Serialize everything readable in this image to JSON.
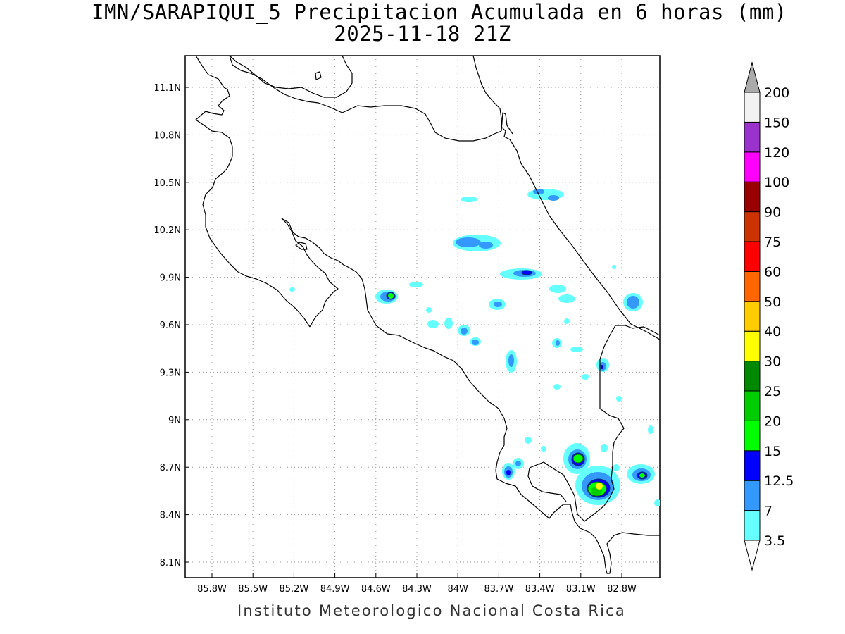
{
  "title": {
    "line1": "IMN/SARAPIQUI_5 Precipitacion Acumulada en 6 horas (mm)",
    "line2": "2025-11-18 21Z"
  },
  "footer": "Instituto Meteorologico Nacional Costa Rica",
  "map": {
    "lon_range": [
      -86.1,
      -82.6
    ],
    "lat_range": [
      8.0,
      11.3
    ],
    "lat_ticks": [
      "11.1N",
      "10.8N",
      "10.5N",
      "10.2N",
      "9.9N",
      "9.6N",
      "9.3N",
      "9N",
      "8.7N",
      "8.4N",
      "8.1N"
    ],
    "lon_ticks": [
      "85.8W",
      "85.5W",
      "85.2W",
      "84.9W",
      "84.6W",
      "84.3W",
      "84W",
      "83.7W",
      "83.4W",
      "83.1W",
      "82.8W"
    ]
  },
  "colorbar": {
    "labels": [
      "3.5",
      "7",
      "12.5",
      "15",
      "20",
      "25",
      "30",
      "40",
      "50",
      "60",
      "75",
      "90",
      "100",
      "120",
      "150",
      "200"
    ],
    "colors": [
      "#66ffff",
      "#3399ff",
      "#0000ff",
      "#00ff00",
      "#00cc00",
      "#008800",
      "#ffff00",
      "#ffcc00",
      "#ff6600",
      "#ff0000",
      "#cc3300",
      "#990000",
      "#ff00ff",
      "#9933cc",
      "#f2f2f2",
      "#aaaaaa"
    ]
  }
}
